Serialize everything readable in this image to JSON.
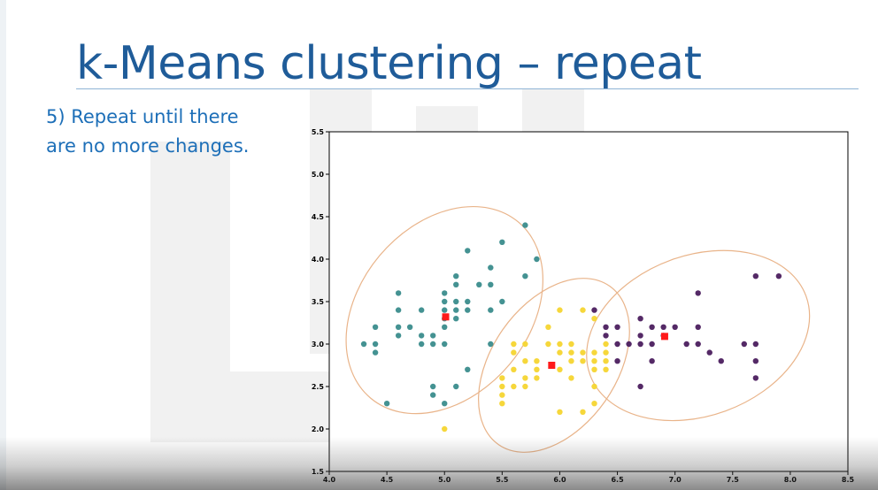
{
  "slide": {
    "title": "k-Means clustering – repeat",
    "bullet_line1": "5) Repeat until there",
    "bullet_line2": "are no more changes."
  },
  "colors": {
    "title": "#1f5c99",
    "bullet": "#1d6fb8",
    "cluster_teal": "#3a8c8c",
    "cluster_yellow": "#f5d530",
    "cluster_purple": "#4b1d5e",
    "centroid": "#ff1a1a",
    "ellipse": "#e9b48a"
  },
  "chart_data": {
    "type": "scatter",
    "xlim": [
      4.0,
      8.5
    ],
    "ylim": [
      1.5,
      5.5
    ],
    "xticks": [
      "4.0",
      "4.5",
      "5.0",
      "5.5",
      "6.0",
      "6.5",
      "7.0",
      "7.5",
      "8.0",
      "8.5"
    ],
    "yticks": [
      "1.5",
      "2.0",
      "2.5",
      "3.0",
      "3.5",
      "4.0",
      "4.5",
      "5.0",
      "5.5"
    ],
    "grid": false,
    "series": [
      {
        "color": "#3a8c8c",
        "points": [
          [
            4.3,
            3.0
          ],
          [
            4.4,
            2.9
          ],
          [
            4.4,
            3.0
          ],
          [
            4.4,
            3.2
          ],
          [
            4.5,
            2.3
          ],
          [
            4.6,
            3.1
          ],
          [
            4.6,
            3.2
          ],
          [
            4.6,
            3.4
          ],
          [
            4.6,
            3.6
          ],
          [
            4.7,
            3.2
          ],
          [
            4.8,
            3.0
          ],
          [
            4.8,
            3.1
          ],
          [
            4.8,
            3.4
          ],
          [
            4.9,
            2.4
          ],
          [
            4.9,
            2.5
          ],
          [
            4.9,
            3.0
          ],
          [
            4.9,
            3.1
          ],
          [
            5.0,
            2.3
          ],
          [
            5.0,
            3.0
          ],
          [
            5.0,
            3.2
          ],
          [
            5.0,
            3.3
          ],
          [
            5.0,
            3.4
          ],
          [
            5.0,
            3.5
          ],
          [
            5.0,
            3.6
          ],
          [
            5.1,
            2.5
          ],
          [
            5.1,
            3.3
          ],
          [
            5.1,
            3.4
          ],
          [
            5.1,
            3.5
          ],
          [
            5.1,
            3.7
          ],
          [
            5.1,
            3.8
          ],
          [
            5.2,
            2.7
          ],
          [
            5.2,
            3.4
          ],
          [
            5.2,
            3.5
          ],
          [
            5.2,
            4.1
          ],
          [
            5.3,
            3.7
          ],
          [
            5.4,
            3.0
          ],
          [
            5.4,
            3.4
          ],
          [
            5.4,
            3.7
          ],
          [
            5.4,
            3.9
          ],
          [
            5.5,
            3.5
          ],
          [
            5.5,
            4.2
          ],
          [
            5.7,
            3.8
          ],
          [
            5.7,
            4.4
          ],
          [
            5.8,
            4.0
          ]
        ]
      },
      {
        "color": "#f5d530",
        "points": [
          [
            5.0,
            2.0
          ],
          [
            5.5,
            2.3
          ],
          [
            5.5,
            2.4
          ],
          [
            5.5,
            2.5
          ],
          [
            5.5,
            2.6
          ],
          [
            5.6,
            2.5
          ],
          [
            5.6,
            2.7
          ],
          [
            5.6,
            2.9
          ],
          [
            5.6,
            3.0
          ],
          [
            5.7,
            2.5
          ],
          [
            5.7,
            2.6
          ],
          [
            5.7,
            2.8
          ],
          [
            5.7,
            3.0
          ],
          [
            5.8,
            2.6
          ],
          [
            5.8,
            2.7
          ],
          [
            5.8,
            2.8
          ],
          [
            5.9,
            3.0
          ],
          [
            5.9,
            3.2
          ],
          [
            6.0,
            2.2
          ],
          [
            6.0,
            2.7
          ],
          [
            6.0,
            2.9
          ],
          [
            6.0,
            3.0
          ],
          [
            6.0,
            3.4
          ],
          [
            6.1,
            2.6
          ],
          [
            6.1,
            2.8
          ],
          [
            6.1,
            2.9
          ],
          [
            6.1,
            3.0
          ],
          [
            6.2,
            2.2
          ],
          [
            6.2,
            2.8
          ],
          [
            6.2,
            2.9
          ],
          [
            6.2,
            3.4
          ],
          [
            6.3,
            2.3
          ],
          [
            6.3,
            2.5
          ],
          [
            6.3,
            2.7
          ],
          [
            6.3,
            2.8
          ],
          [
            6.3,
            2.9
          ],
          [
            6.3,
            3.3
          ],
          [
            6.4,
            2.7
          ],
          [
            6.4,
            2.8
          ],
          [
            6.4,
            2.9
          ],
          [
            6.4,
            3.0
          ]
        ]
      },
      {
        "color": "#4b1d5e",
        "points": [
          [
            6.3,
            3.4
          ],
          [
            6.4,
            3.1
          ],
          [
            6.4,
            3.2
          ],
          [
            6.5,
            2.8
          ],
          [
            6.5,
            3.0
          ],
          [
            6.5,
            3.2
          ],
          [
            6.6,
            3.0
          ],
          [
            6.7,
            2.5
          ],
          [
            6.7,
            3.0
          ],
          [
            6.7,
            3.1
          ],
          [
            6.7,
            3.3
          ],
          [
            6.8,
            2.8
          ],
          [
            6.8,
            3.0
          ],
          [
            6.8,
            3.2
          ],
          [
            6.9,
            3.1
          ],
          [
            6.9,
            3.2
          ],
          [
            7.0,
            3.2
          ],
          [
            7.1,
            3.0
          ],
          [
            7.2,
            3.0
          ],
          [
            7.2,
            3.2
          ],
          [
            7.2,
            3.6
          ],
          [
            7.3,
            2.9
          ],
          [
            7.4,
            2.8
          ],
          [
            7.6,
            3.0
          ],
          [
            7.7,
            2.6
          ],
          [
            7.7,
            2.8
          ],
          [
            7.7,
            3.0
          ],
          [
            7.7,
            3.8
          ],
          [
            7.9,
            3.8
          ]
        ]
      }
    ],
    "centroids": [
      [
        5.01,
        3.32
      ],
      [
        5.93,
        2.75
      ],
      [
        6.91,
        3.09
      ]
    ]
  }
}
